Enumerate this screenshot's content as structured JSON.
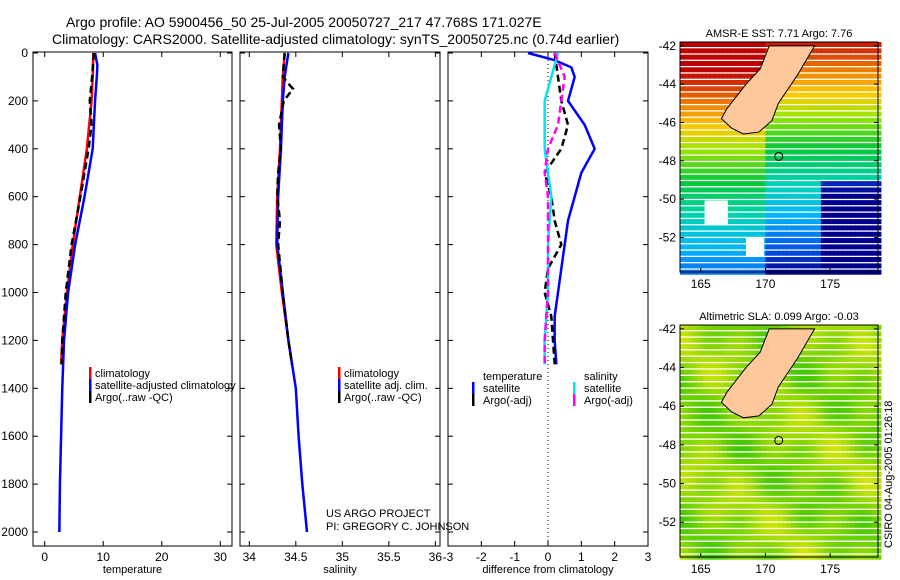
{
  "header": {
    "line1": "Argo profile: AO 5900456_50 25-Jul-2005 20050727_217 47.768S 171.027E",
    "line2": "Climatology: CARS2000. Satellite-adjusted climatology: synTS_20050725.nc (0.74d earlier)"
  },
  "credit": {
    "line1": "US ARGO PROJECT",
    "line2": "PI: GREGORY C. JOHNSON"
  },
  "side_label": "CSIRO 04-Aug-2005 01:26:18",
  "colors": {
    "climatology": "#ff0000",
    "satellite": "#0000ff",
    "argo": "#000000",
    "sal_satellite": "#00e5ee",
    "sal_argo": "#ff00ff",
    "land": "#ffc89a"
  },
  "chart_data": [
    {
      "type": "line",
      "xlabel": "temperature",
      "ylabel": "",
      "xlim": [
        -2,
        32
      ],
      "ylim": [
        2050,
        0
      ],
      "xticks": [
        0,
        10,
        20,
        30
      ],
      "yticks": [
        0,
        200,
        400,
        600,
        800,
        1000,
        1200,
        1400,
        1600,
        1800,
        2000
      ],
      "legend": [
        "climatology",
        "satellite-adjusted climatology",
        "Argo(..raw -QC)"
      ],
      "series": [
        {
          "name": "climatology",
          "color": "#ff0000",
          "dash": false,
          "depth": [
            0,
            100,
            200,
            400,
            600,
            800,
            1000,
            1200,
            1300
          ],
          "values": [
            8.3,
            8.2,
            8.0,
            7.2,
            6.0,
            4.8,
            3.8,
            3.0,
            2.8
          ]
        },
        {
          "name": "satellite-adjusted climatology",
          "color": "#0000ff",
          "dash": false,
          "depth": [
            0,
            50,
            100,
            200,
            400,
            600,
            800,
            1000,
            1200,
            1400,
            1600,
            1800,
            2000
          ],
          "values": [
            8.6,
            9.0,
            8.9,
            8.6,
            8.2,
            6.8,
            5.2,
            4.0,
            3.3,
            3.0,
            2.8,
            2.6,
            2.5
          ]
        },
        {
          "name": "Argo(..raw -QC)",
          "color": "#000000",
          "dash": true,
          "depth": [
            0,
            100,
            200,
            300,
            400,
            600,
            800,
            1000,
            1200,
            1300
          ],
          "values": [
            8.4,
            8.1,
            7.7,
            8.0,
            7.5,
            6.1,
            4.6,
            3.6,
            3.0,
            2.9
          ]
        }
      ]
    },
    {
      "type": "line",
      "xlabel": "salinity",
      "ylabel": "",
      "xlim": [
        33.9,
        36.05
      ],
      "ylim": [
        2050,
        0
      ],
      "xticks": [
        34,
        34.5,
        35,
        35.5,
        36
      ],
      "legend": [
        "climatology",
        "satellite adj. clim.",
        "Argo(..raw -QC)"
      ],
      "series": [
        {
          "name": "climatology",
          "color": "#ff0000",
          "dash": false,
          "depth": [
            0,
            100,
            200,
            400,
            600,
            800,
            1000,
            1200,
            1300
          ],
          "values": [
            34.38,
            34.36,
            34.35,
            34.33,
            34.3,
            34.29,
            34.35,
            34.42,
            34.46
          ]
        },
        {
          "name": "satellite adj. clim.",
          "color": "#0000ff",
          "dash": false,
          "depth": [
            0,
            100,
            200,
            400,
            600,
            800,
            1000,
            1200,
            1400,
            1600,
            1800,
            2000
          ],
          "values": [
            34.42,
            34.38,
            34.36,
            34.34,
            34.31,
            34.3,
            34.36,
            34.42,
            34.5,
            34.53,
            34.57,
            34.62
          ]
        },
        {
          "name": "Argo(..raw -QC)",
          "color": "#000000",
          "dash": true,
          "depth": [
            0,
            100,
            150,
            200,
            300,
            400,
            500,
            600,
            700,
            800,
            1000,
            1200,
            1300
          ],
          "values": [
            34.38,
            34.36,
            34.47,
            34.37,
            34.32,
            34.34,
            34.31,
            34.3,
            34.33,
            34.31,
            34.36,
            34.42,
            34.46
          ]
        }
      ]
    },
    {
      "type": "line",
      "xlabel": "difference from climatology",
      "ylabel": "",
      "xlim": [
        -3,
        3
      ],
      "ylim": [
        2050,
        0
      ],
      "xticks": [
        -3,
        -2,
        -1,
        0,
        1,
        2,
        3
      ],
      "zero_line": "dotted",
      "legend_groups": [
        {
          "title": "temperature",
          "items": [
            "satellite",
            "Argo(-adj)"
          ]
        },
        {
          "title": "salinity",
          "items": [
            "satellite",
            "Argo(-adj)"
          ]
        }
      ],
      "series": [
        {
          "name": "temperature satellite",
          "color": "#0000ff",
          "dash": false,
          "depth": [
            0,
            30,
            60,
            100,
            200,
            300,
            400,
            500,
            700,
            900,
            1000,
            1100,
            1200,
            1300
          ],
          "values": [
            -0.6,
            0.2,
            0.7,
            0.8,
            0.6,
            1.1,
            1.4,
            1.0,
            0.6,
            0.4,
            0.3,
            0.2,
            0.2,
            0.25
          ]
        },
        {
          "name": "temperature Argo(-adj)",
          "color": "#000000",
          "dash": true,
          "depth": [
            0,
            100,
            200,
            300,
            400,
            500,
            600,
            700,
            800,
            900,
            1000,
            1100,
            1200,
            1300
          ],
          "values": [
            0.2,
            0.3,
            0.4,
            0.6,
            0.4,
            -0.1,
            0.1,
            0.2,
            0.4,
            0.0,
            -0.1,
            0.1,
            0.15,
            0.2
          ]
        },
        {
          "name": "salinity satellite",
          "color": "#00e5ee",
          "dash": false,
          "depth": [
            0,
            100,
            200,
            400,
            600,
            800,
            1000,
            1200,
            1300
          ],
          "values": [
            0.3,
            0.1,
            -0.1,
            -0.1,
            0.1,
            0.0,
            0.0,
            -0.1,
            -0.1
          ]
        },
        {
          "name": "salinity Argo(-adj)",
          "color": "#ff00ff",
          "dash": true,
          "depth": [
            0,
            100,
            200,
            300,
            400,
            500,
            600,
            700,
            800,
            1000,
            1200,
            1300
          ],
          "values": [
            0.2,
            0.5,
            0.4,
            0.3,
            0.0,
            -0.1,
            0.0,
            0.0,
            0.0,
            0.0,
            -0.1,
            -0.1
          ]
        }
      ]
    }
  ],
  "maps": [
    {
      "title": "AMSR-E SST: 7.71 Argo: 7.76",
      "lat_ticks": [
        "-42",
        "-44",
        "-46",
        "-48",
        "-50",
        "-52"
      ],
      "lon_ticks": [
        "165",
        "170",
        "175"
      ],
      "kind": "sst"
    },
    {
      "title": "Altimetric SLA: 0.099 Argo: -0.03",
      "lat_ticks": [
        "-42",
        "-44",
        "-46",
        "-48",
        "-50",
        "-52"
      ],
      "lon_ticks": [
        "165",
        "170",
        "175"
      ],
      "kind": "sla"
    }
  ]
}
